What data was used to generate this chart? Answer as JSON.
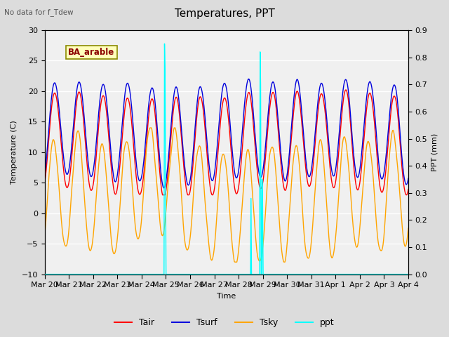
{
  "title": "Temperatures, PPT",
  "subtitle": "No data for f_Tdew",
  "site_label": "BA_arable",
  "xlabel": "Time",
  "ylabel_left": "Temperature (C)",
  "ylabel_right": "PPT (mm)",
  "ylim_left": [
    -10,
    30
  ],
  "ylim_right": [
    0.0,
    0.9
  ],
  "yticks_left": [
    -10,
    -5,
    0,
    5,
    10,
    15,
    20,
    25,
    30
  ],
  "yticks_right": [
    0.0,
    0.1,
    0.2,
    0.3,
    0.4,
    0.5,
    0.6,
    0.7,
    0.8,
    0.9
  ],
  "xtick_labels": [
    "Mar 20",
    "Mar 21",
    "Mar 22",
    "Mar 23",
    "Mar 24",
    "Mar 25",
    "Mar 26",
    "Mar 27",
    "Mar 28",
    "Mar 29",
    "Mar 30",
    "Mar 31",
    "Apr 1",
    "Apr 2",
    "Apr 3",
    "Apr 4"
  ],
  "tair_color": "#FF0000",
  "tsurf_color": "#0000DD",
  "tsky_color": "#FFA500",
  "ppt_color": "#00FFFF",
  "bg_color": "#DCDCDC",
  "plot_bg_color": "#F0F0F0",
  "grid_color": "#FFFFFF",
  "n_days": 15,
  "seed": 42
}
